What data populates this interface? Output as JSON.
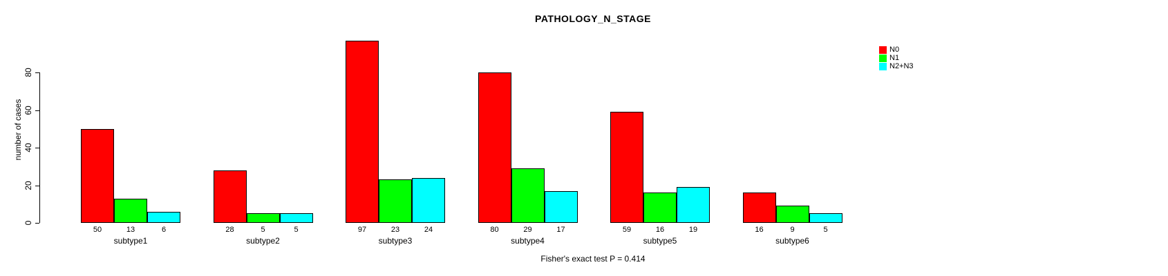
{
  "title": "PATHOLOGY_N_STAGE",
  "y_axis": {
    "label": "number of cases",
    "ticks": [
      0,
      20,
      40,
      60,
      80
    ]
  },
  "legend": {
    "items": [
      {
        "label": "N0",
        "color": "#ff0000"
      },
      {
        "label": "N1",
        "color": "#00ff00"
      },
      {
        "label": "N2+N3",
        "color": "#00ffff"
      }
    ]
  },
  "footer": {
    "note": "Fisher's exact test P = 0.414"
  },
  "chart_data": {
    "type": "bar",
    "title": "PATHOLOGY_N_STAGE",
    "categories": [
      "subtype1",
      "subtype2",
      "subtype3",
      "subtype4",
      "subtype5",
      "subtype6"
    ],
    "series": [
      {
        "name": "N0",
        "color": "#ff0000",
        "values": [
          50,
          28,
          97,
          80,
          59,
          16
        ]
      },
      {
        "name": "N1",
        "color": "#00ff00",
        "values": [
          13,
          5,
          23,
          29,
          16,
          9
        ]
      },
      {
        "name": "N2+N3",
        "color": "#00ffff",
        "values": [
          6,
          5,
          24,
          17,
          19,
          5
        ]
      }
    ],
    "xlabel": "",
    "ylabel": "number of cases",
    "ylim": [
      0,
      100
    ],
    "yticks": [
      0,
      20,
      40,
      60,
      80
    ],
    "grid": false,
    "legend_position": "top-right",
    "bar_value_labels": true,
    "annotation": "Fisher's exact test P = 0.414"
  }
}
